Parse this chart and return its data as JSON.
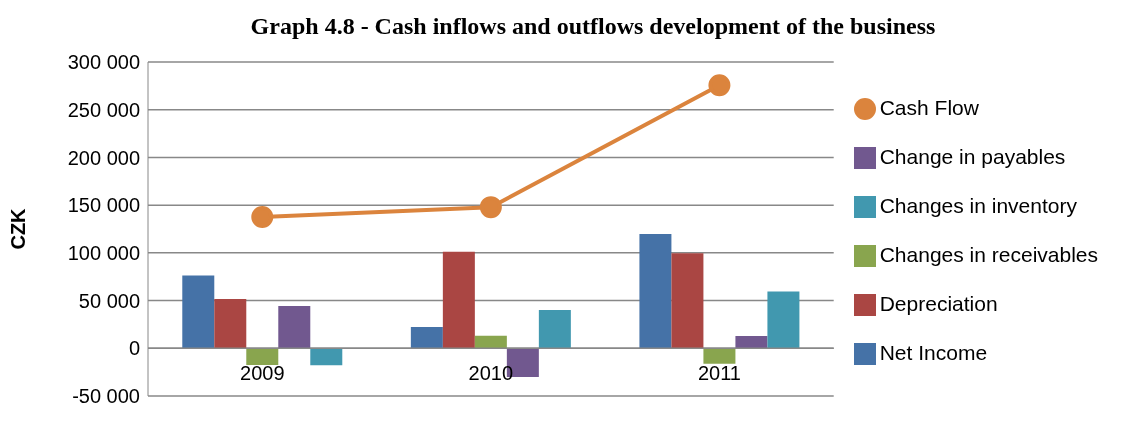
{
  "chart_data": {
    "type": "bar",
    "title": "Graph 4.8 - Cash inflows and outflows development of the business",
    "ylabel": "CZK",
    "categories": [
      "2009",
      "2010",
      "2011"
    ],
    "series": [
      {
        "name": "Net Income",
        "color": "#4572a7",
        "values": [
          76400,
          22300,
          119800
        ]
      },
      {
        "name": "Depreciation",
        "color": "#aa4643",
        "values": [
          51700,
          101200,
          99600
        ]
      },
      {
        "name": "Changes in receivables",
        "color": "#89a54e",
        "values": [
          -17400,
          13200,
          -16100
        ]
      },
      {
        "name": "Change in payables",
        "color": "#71588f",
        "values": [
          44200,
          -30200,
          12800
        ]
      },
      {
        "name": "Changes in inventory",
        "color": "#4198af",
        "values": [
          -17800,
          40100,
          59500
        ]
      },
      {
        "name": "Cash Flow",
        "type": "line",
        "color": "#db843d",
        "values": [
          137600,
          147900,
          275600
        ]
      }
    ],
    "ylim": [
      -50000,
      300000
    ],
    "yticks": [
      {
        "value": -50000,
        "label": "-50 000"
      },
      {
        "value": 0,
        "label": "0"
      },
      {
        "value": 50000,
        "label": "50 000"
      },
      {
        "value": 100000,
        "label": "100 000"
      },
      {
        "value": 150000,
        "label": "150 000"
      },
      {
        "value": 200000,
        "label": "200 000"
      },
      {
        "value": 250000,
        "label": "250 000"
      },
      {
        "value": 300000,
        "label": "300 000"
      }
    ],
    "grid": "y",
    "legend": "right",
    "marker": "circle"
  }
}
